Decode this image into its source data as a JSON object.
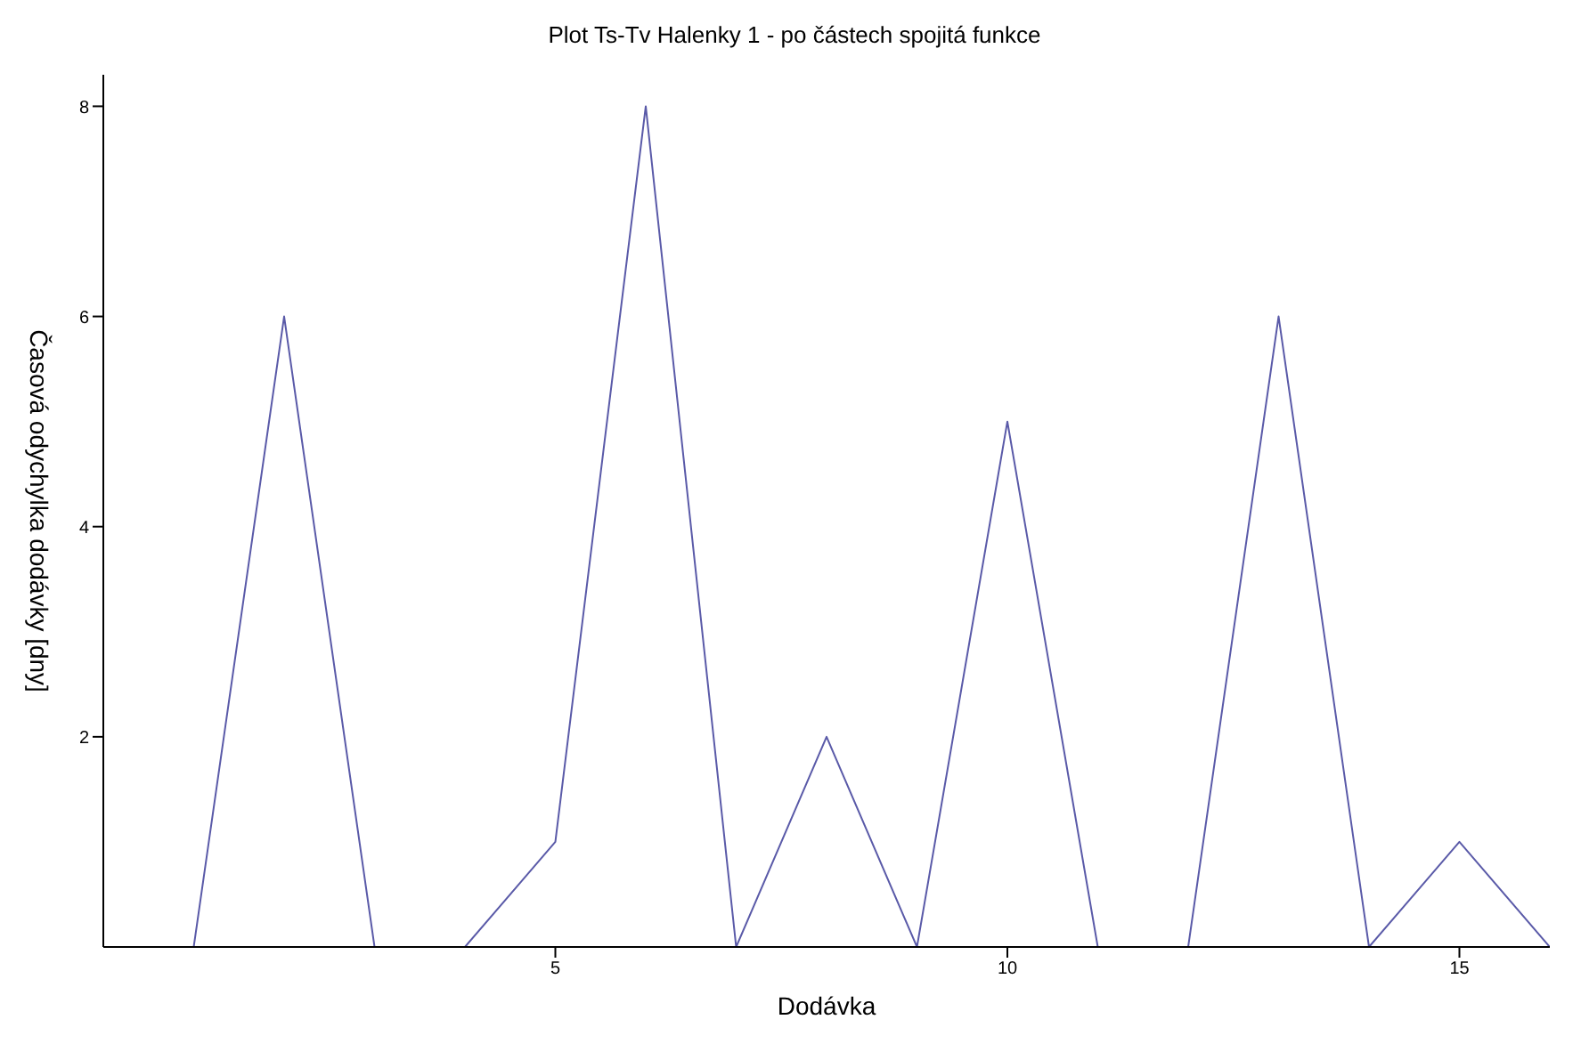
{
  "chart_data": {
    "type": "line",
    "title": "Plot Ts-Tv Halenky 1 - po částech spojitá funkce",
    "xlabel": "Dodávka",
    "ylabel": "Časová odychylka dodávky [dny]",
    "x": [
      1,
      2,
      3,
      4,
      5,
      6,
      7,
      8,
      9,
      10,
      11,
      12,
      13,
      14,
      15,
      16
    ],
    "series": [
      {
        "color": "#5a5aa8",
        "values": [
          0,
          6,
          0,
          0,
          1,
          8,
          0,
          2,
          0,
          5,
          0,
          0,
          6,
          0,
          1,
          0
        ]
      }
    ],
    "xlim": [
      0,
      16
    ],
    "xticks": [
      5,
      10,
      15
    ],
    "ylim": [
      0,
      8.3
    ],
    "yticks": [
      2,
      4,
      6,
      8
    ],
    "grid": false,
    "legend": false,
    "marker": "none",
    "line_style": "solid"
  }
}
